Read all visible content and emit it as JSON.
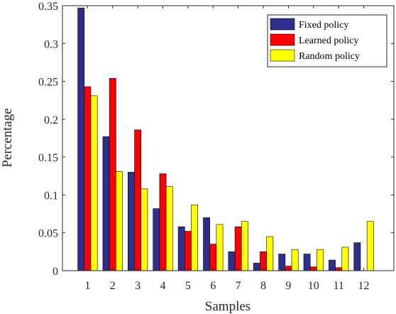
{
  "chart_data": {
    "type": "bar",
    "xlabel": "Samples",
    "ylabel": "Percentage",
    "categories": [
      "1",
      "2",
      "3",
      "4",
      "5",
      "6",
      "7",
      "8",
      "9",
      "10",
      "11",
      "12"
    ],
    "xlim": [
      0,
      13.2
    ],
    "ylim": [
      0,
      0.35
    ],
    "yticks": [
      0,
      0.05,
      0.1,
      0.15,
      0.2,
      0.25,
      0.3,
      0.35
    ],
    "ytick_labels": [
      "0",
      "0.05",
      "0.1",
      "0.15",
      "0.2",
      "0.25",
      "0.3",
      "0.35"
    ],
    "grid": false,
    "legend_position": "top-right",
    "series": [
      {
        "name": "Fixed policy",
        "color": "#2e2f8c",
        "values": [
          0.347,
          0.177,
          0.13,
          0.082,
          0.058,
          0.07,
          0.025,
          0.01,
          0.022,
          0.022,
          0.014,
          0.037
        ]
      },
      {
        "name": "Learned policy",
        "color": "#ff0000",
        "values": [
          0.243,
          0.254,
          0.186,
          0.128,
          0.052,
          0.035,
          0.058,
          0.025,
          0.006,
          0.005,
          0.004,
          0.0
        ]
      },
      {
        "name": "Random policy",
        "color": "#ffff00",
        "values": [
          0.231,
          0.131,
          0.108,
          0.111,
          0.087,
          0.061,
          0.065,
          0.045,
          0.028,
          0.028,
          0.031,
          0.065
        ]
      }
    ]
  }
}
